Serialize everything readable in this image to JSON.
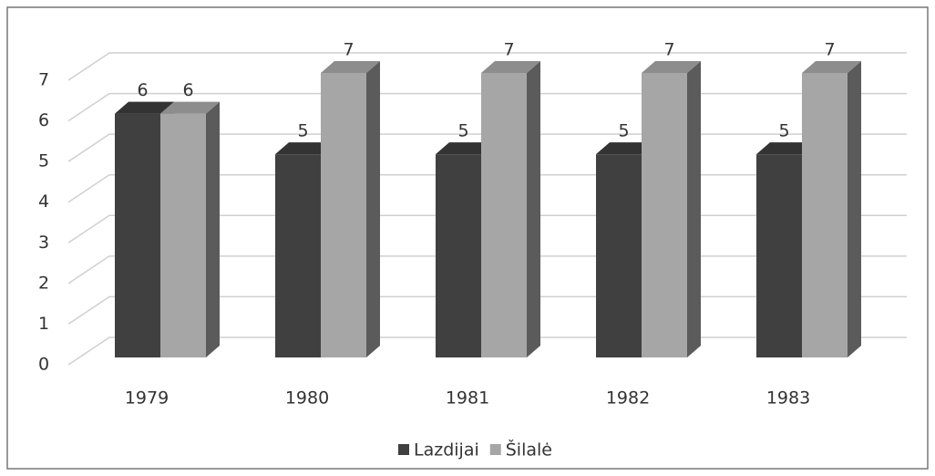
{
  "chart_data": {
    "type": "bar3d",
    "categories": [
      "1979",
      "1980",
      "1981",
      "1982",
      "1983"
    ],
    "series": [
      {
        "name": "Lazdijai",
        "color": "#404040",
        "values": [
          6,
          5,
          5,
          5,
          5
        ]
      },
      {
        "name": "Šilalė",
        "color": "#a6a6a6",
        "values": [
          6,
          7,
          7,
          7,
          7
        ]
      }
    ],
    "ylim": [
      0,
      7
    ],
    "yticks": [
      0,
      1,
      2,
      3,
      4,
      5,
      6,
      7
    ],
    "grid": true,
    "legend": "bottom"
  }
}
